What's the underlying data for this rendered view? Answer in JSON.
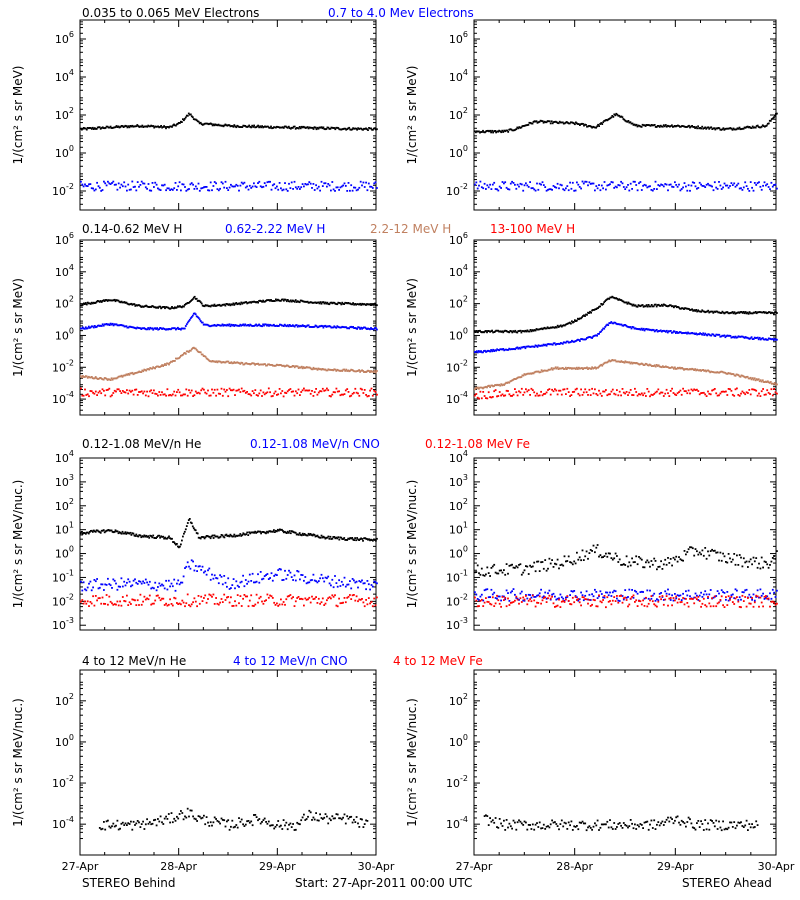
{
  "x_ticks": [
    "27-Apr",
    "28-Apr",
    "29-Apr",
    "30-Apr"
  ],
  "footer": {
    "left": "STEREO Behind",
    "center": "Start: 27-Apr-2011 00:00 UTC",
    "right": "STEREO Ahead"
  },
  "colors": {
    "black": "#000000",
    "blue": "#0000ff",
    "tan": "#c08060",
    "red": "#ff0000"
  },
  "chart_data": [
    {
      "type": "scatter",
      "row": 1,
      "log_y": true,
      "ylabel": "1/(cm² s sr MeV)",
      "legend": [
        {
          "name": "0.035 to 0.065 MeV Electrons",
          "color": "#000000"
        },
        {
          "name": "0.7 to 4.0 Mev Electrons",
          "color": "#0000ff"
        }
      ],
      "ytick_exponents": [
        -2,
        0,
        2,
        4,
        6
      ],
      "ylim_log10": [
        -3,
        7
      ],
      "panels": [
        {
          "side": "behind",
          "series": [
            {
              "name": "0.035 to 0.065 MeV Electrons",
              "color": "#000000",
              "x": [
                0,
                0.3,
                0.6,
                0.9,
                1.0,
                1.1,
                1.2,
                1.5,
                2.0,
                2.5,
                3.0
              ],
              "y": [
                20,
                25,
                30,
                25,
                40,
                130,
                40,
                30,
                25,
                22,
                20
              ]
            },
            {
              "name": "0.7 to 4.0 Mev Electrons",
              "color": "#0000ff",
              "x": [
                0,
                0.5,
                1.0,
                1.5,
                2.0,
                2.5,
                3.0
              ],
              "y": [
                0.02,
                0.02,
                0.02,
                0.02,
                0.02,
                0.02,
                0.02
              ],
              "scatter": true
            }
          ]
        },
        {
          "side": "ahead",
          "series": [
            {
              "name": "0.035 to 0.065 MeV Electrons",
              "color": "#000000",
              "x": [
                0,
                0.3,
                0.4,
                0.6,
                1.0,
                1.2,
                1.4,
                1.6,
                2.0,
                2.5,
                2.9,
                3.0
              ],
              "y": [
                15,
                15,
                20,
                50,
                40,
                25,
                120,
                30,
                30,
                20,
                30,
                150
              ]
            },
            {
              "name": "0.7 to 4.0 Mev Electrons",
              "color": "#0000ff",
              "x": [
                0,
                0.5,
                1.0,
                1.5,
                2.0,
                2.5,
                3.0
              ],
              "y": [
                0.02,
                0.02,
                0.02,
                0.02,
                0.02,
                0.02,
                0.02
              ],
              "scatter": true
            }
          ]
        }
      ]
    },
    {
      "type": "scatter",
      "row": 2,
      "log_y": true,
      "ylabel": "1/(cm² s sr MeV)",
      "legend": [
        {
          "name": "0.14-0.62 MeV H",
          "color": "#000000"
        },
        {
          "name": "0.62-2.22 MeV H",
          "color": "#0000ff"
        },
        {
          "name": "2.2-12 MeV H",
          "color": "#c08060"
        },
        {
          "name": "13-100 MeV H",
          "color": "#ff0000"
        }
      ],
      "ytick_exponents": [
        -4,
        -2,
        0,
        2,
        4,
        6
      ],
      "ylim_log10": [
        -5,
        6
      ],
      "panels": [
        {
          "side": "behind",
          "series": [
            {
              "name": "0.14-0.62 MeV H",
              "color": "#000000",
              "x": [
                0,
                0.3,
                0.6,
                0.9,
                1.05,
                1.15,
                1.25,
                1.5,
                2.0,
                2.5,
                3.0
              ],
              "y": [
                100,
                200,
                80,
                60,
                80,
                300,
                80,
                100,
                200,
                120,
                100
              ]
            },
            {
              "name": "0.62-2.22 MeV H",
              "color": "#0000ff",
              "x": [
                0,
                0.3,
                0.6,
                0.9,
                1.05,
                1.15,
                1.25,
                1.5,
                2.0,
                2.5,
                3.0
              ],
              "y": [
                3,
                6,
                3,
                3,
                3,
                30,
                5,
                5,
                5,
                4,
                3
              ]
            },
            {
              "name": "2.2-12 MeV H",
              "color": "#c08060",
              "x": [
                0,
                0.3,
                0.6,
                0.9,
                1.15,
                1.3,
                1.6,
                2.0,
                2.5,
                3.0
              ],
              "y": [
                0.003,
                0.002,
                0.006,
                0.02,
                0.2,
                0.03,
                0.02,
                0.015,
                0.008,
                0.006
              ]
            },
            {
              "name": "13-100 MeV H",
              "color": "#ff0000",
              "x": [
                0,
                0.5,
                1.0,
                1.5,
                2.0,
                2.5,
                3.0
              ],
              "y": [
                0.0003,
                0.0003,
                0.0003,
                0.0003,
                0.0003,
                0.0003,
                0.0003
              ],
              "scatter": true
            }
          ]
        },
        {
          "side": "ahead",
          "series": [
            {
              "name": "0.14-0.62 MeV H",
              "color": "#000000",
              "x": [
                0,
                0.5,
                0.9,
                1.0,
                1.2,
                1.35,
                1.6,
                1.9,
                2.2,
                2.5,
                3.0
              ],
              "y": [
                2,
                2,
                5,
                10,
                50,
                300,
                80,
                90,
                40,
                30,
                30
              ]
            },
            {
              "name": "0.62-2.22 MeV H",
              "color": "#0000ff",
              "x": [
                0,
                0.5,
                0.9,
                1.0,
                1.2,
                1.35,
                1.6,
                1.9,
                2.2,
                2.5,
                3.0
              ],
              "y": [
                0.1,
                0.2,
                0.4,
                0.5,
                1,
                8,
                3,
                2,
                1.5,
                1,
                0.6
              ]
            },
            {
              "name": "2.2-12 MeV H",
              "color": "#c08060",
              "x": [
                0,
                0.3,
                0.5,
                0.8,
                1.2,
                1.35,
                1.6,
                2.0,
                2.5,
                3.0
              ],
              "y": [
                0.0005,
                0.001,
                0.004,
                0.01,
                0.01,
                0.03,
                0.02,
                0.01,
                0.005,
                0.001
              ]
            },
            {
              "name": "13-100 MeV H",
              "color": "#ff0000",
              "x": [
                0,
                0.5,
                1.0,
                1.5,
                2.0,
                2.5,
                3.0
              ],
              "y": [
                0.0002,
                0.0003,
                0.0003,
                0.0003,
                0.0003,
                0.0003,
                0.0003
              ],
              "scatter": true
            }
          ]
        }
      ]
    },
    {
      "type": "scatter",
      "row": 3,
      "log_y": true,
      "ylabel": "1/(cm² s sr MeV/nuc.)",
      "legend": [
        {
          "name": "0.12-1.08 MeV/n He",
          "color": "#000000"
        },
        {
          "name": "0.12-1.08 MeV/n CNO",
          "color": "#0000ff"
        },
        {
          "name": "0.12-1.08 MeV Fe",
          "color": "#ff0000"
        }
      ],
      "ytick_exponents": [
        -3,
        -2,
        -1,
        0,
        1,
        2,
        3,
        4
      ],
      "ylim_log10": [
        -3.2,
        4
      ],
      "panels": [
        {
          "side": "behind",
          "series": [
            {
              "name": "0.12-1.08 MeV/n He",
              "color": "#000000",
              "x": [
                0,
                0.3,
                0.6,
                0.9,
                1.0,
                1.1,
                1.2,
                1.5,
                2.0,
                2.5,
                3.0
              ],
              "y": [
                8,
                10,
                6,
                5,
                2,
                30,
                5,
                6,
                10,
                5,
                4
              ]
            },
            {
              "name": "0.12-1.08 MeV/n CNO",
              "color": "#0000ff",
              "x": [
                0,
                0.5,
                1.0,
                1.1,
                1.5,
                2.0,
                2.5,
                3.0
              ],
              "y": [
                0.05,
                0.06,
                0.05,
                0.4,
                0.06,
                0.15,
                0.08,
                0.05
              ],
              "scatter": true
            },
            {
              "name": "0.12-1.08 MeV Fe",
              "color": "#ff0000",
              "x": [
                0,
                0.5,
                1.0,
                1.5,
                2.0,
                2.5,
                3.0
              ],
              "y": [
                0.012,
                0.012,
                0.012,
                0.012,
                0.012,
                0.012,
                0.012
              ],
              "scatter": true
            }
          ]
        },
        {
          "side": "ahead",
          "series": [
            {
              "name": "0.12-1.08 MeV/n He",
              "color": "#000000",
              "x": [
                0,
                0.5,
                0.9,
                1.2,
                1.5,
                1.9,
                2.2,
                2.5,
                2.9,
                3.0
              ],
              "y": [
                0.2,
                0.25,
                0.5,
                1.5,
                0.5,
                0.4,
                1.5,
                0.7,
                0.4,
                0.8
              ],
              "scatter": true
            },
            {
              "name": "0.12-1.08 MeV/n CNO",
              "color": "#0000ff",
              "x": [
                0,
                0.5,
                1.0,
                1.5,
                2.0,
                2.5,
                3.0
              ],
              "y": [
                0.02,
                0.02,
                0.02,
                0.02,
                0.02,
                0.02,
                0.02
              ],
              "scatter": true
            },
            {
              "name": "0.12-1.08 MeV Fe",
              "color": "#ff0000",
              "x": [
                0,
                0.5,
                1.0,
                1.5,
                2.0,
                2.5,
                3.0
              ],
              "y": [
                0.011,
                0.011,
                0.011,
                0.011,
                0.011,
                0.011,
                0.011
              ],
              "scatter": true
            }
          ]
        }
      ]
    },
    {
      "type": "scatter",
      "row": 4,
      "log_y": true,
      "ylabel": "1/(cm² s sr MeV/nuc.)",
      "legend": [
        {
          "name": "4 to 12 MeV/n He",
          "color": "#000000"
        },
        {
          "name": "4 to 12 MeV/n CNO",
          "color": "#0000ff"
        },
        {
          "name": "4 to 12 MeV Fe",
          "color": "#ff0000"
        }
      ],
      "ytick_exponents": [
        -4,
        -2,
        0,
        2
      ],
      "ylim_log10": [
        -5.5,
        3.5
      ],
      "panels": [
        {
          "side": "behind",
          "series": [
            {
              "name": "4 to 12 MeV/n He",
              "color": "#000000",
              "x": [
                0.2,
                0.4,
                0.6,
                0.9,
                1.0,
                1.1,
                1.2,
                1.5,
                1.8,
                2.0,
                2.2,
                2.3,
                2.5,
                2.7,
                2.9
              ],
              "y": [
                0.0001,
                0.0001,
                0.0001,
                0.0002,
                0.0003,
                0.0004,
                0.0002,
                0.0001,
                0.0002,
                0.0001,
                0.0001,
                0.0003,
                0.0002,
                0.0002,
                0.0001
              ],
              "scatter": true
            }
          ]
        },
        {
          "side": "ahead",
          "series": [
            {
              "name": "4 to 12 MeV/n He",
              "color": "#000000",
              "x": [
                0.1,
                0.3,
                0.6,
                0.9,
                1.2,
                1.5,
                1.8,
                2.0,
                2.2,
                2.5,
                2.8
              ],
              "y": [
                0.0002,
                0.0001,
                0.0001,
                0.0001,
                0.0001,
                0.0001,
                0.0001,
                0.0002,
                0.0001,
                0.0001,
                0.0001
              ],
              "scatter": true
            }
          ]
        }
      ]
    }
  ]
}
